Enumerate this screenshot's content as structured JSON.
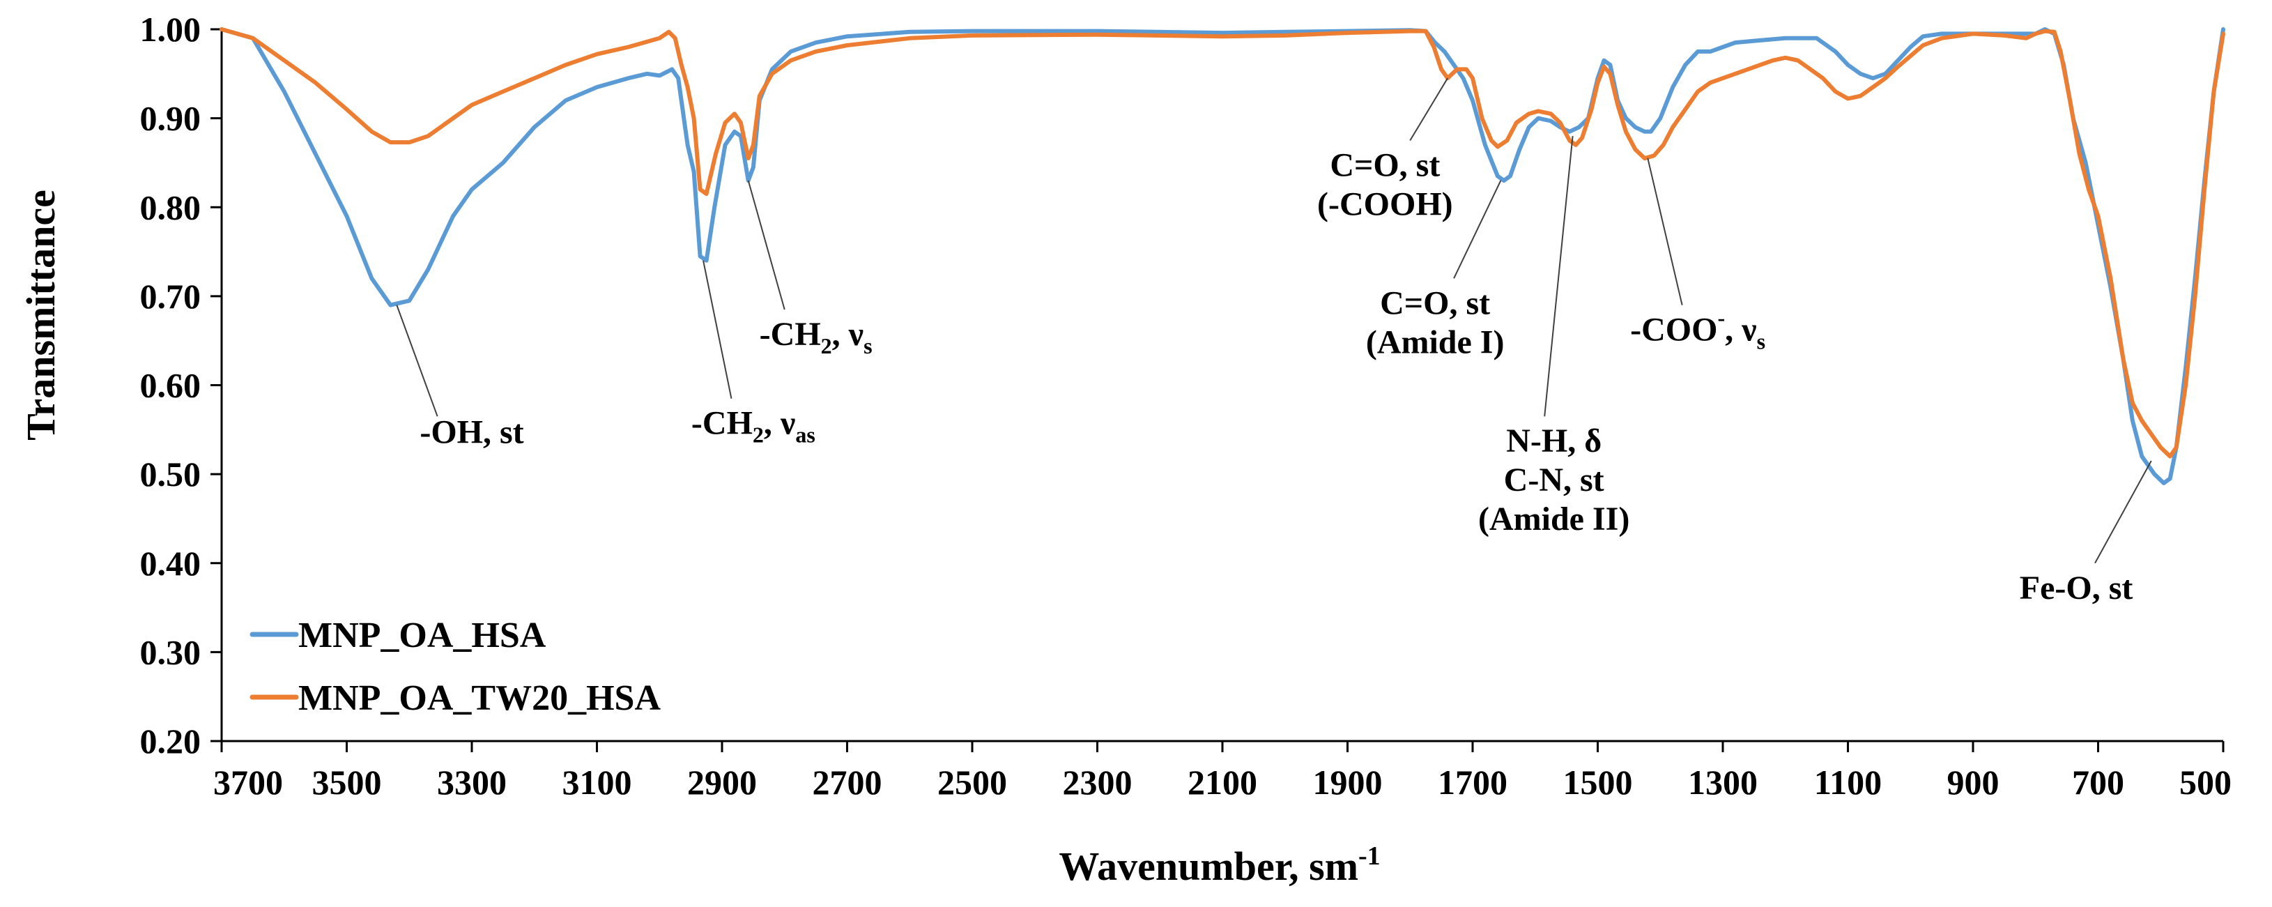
{
  "chart_data": {
    "type": "line",
    "xlabel_main": "Wavenumber, sm",
    "xlabel_sup": "-1",
    "ylabel": "Transmittance",
    "xlim": [
      3700,
      500
    ],
    "ylim": [
      0.2,
      1.0
    ],
    "x_ticks": [
      3700,
      3500,
      3300,
      3100,
      2900,
      2700,
      2500,
      2300,
      2100,
      1900,
      1700,
      1500,
      1300,
      1100,
      900,
      700,
      500
    ],
    "y_ticks": [
      "0.20",
      "0.30",
      "0.40",
      "0.50",
      "0.60",
      "0.70",
      "0.80",
      "0.90",
      "1.00"
    ],
    "legend_position": "bottom-left",
    "series": [
      {
        "name": "MNP_OA_HSA",
        "color": "#5b9bd5",
        "points": [
          [
            3700,
            1.0
          ],
          [
            3650,
            0.99
          ],
          [
            3600,
            0.93
          ],
          [
            3550,
            0.86
          ],
          [
            3500,
            0.79
          ],
          [
            3460,
            0.72
          ],
          [
            3430,
            0.69
          ],
          [
            3400,
            0.695
          ],
          [
            3370,
            0.73
          ],
          [
            3330,
            0.79
          ],
          [
            3300,
            0.82
          ],
          [
            3250,
            0.85
          ],
          [
            3200,
            0.89
          ],
          [
            3150,
            0.92
          ],
          [
            3100,
            0.935
          ],
          [
            3050,
            0.945
          ],
          [
            3020,
            0.95
          ],
          [
            3000,
            0.948
          ],
          [
            2980,
            0.955
          ],
          [
            2970,
            0.945
          ],
          [
            2955,
            0.87
          ],
          [
            2945,
            0.84
          ],
          [
            2935,
            0.745
          ],
          [
            2925,
            0.74
          ],
          [
            2912,
            0.8
          ],
          [
            2895,
            0.87
          ],
          [
            2880,
            0.885
          ],
          [
            2870,
            0.88
          ],
          [
            2858,
            0.83
          ],
          [
            2850,
            0.845
          ],
          [
            2840,
            0.92
          ],
          [
            2820,
            0.955
          ],
          [
            2790,
            0.975
          ],
          [
            2750,
            0.985
          ],
          [
            2700,
            0.992
          ],
          [
            2600,
            0.997
          ],
          [
            2500,
            0.998
          ],
          [
            2300,
            0.998
          ],
          [
            2100,
            0.996
          ],
          [
            2000,
            0.997
          ],
          [
            1900,
            0.998
          ],
          [
            1800,
            0.999
          ],
          [
            1775,
            0.998
          ],
          [
            1760,
            0.985
          ],
          [
            1745,
            0.975
          ],
          [
            1730,
            0.96
          ],
          [
            1715,
            0.945
          ],
          [
            1700,
            0.92
          ],
          [
            1680,
            0.87
          ],
          [
            1660,
            0.835
          ],
          [
            1650,
            0.83
          ],
          [
            1640,
            0.835
          ],
          [
            1625,
            0.865
          ],
          [
            1610,
            0.89
          ],
          [
            1595,
            0.9
          ],
          [
            1575,
            0.897
          ],
          [
            1560,
            0.89
          ],
          [
            1545,
            0.885
          ],
          [
            1530,
            0.89
          ],
          [
            1515,
            0.9
          ],
          [
            1500,
            0.945
          ],
          [
            1490,
            0.965
          ],
          [
            1480,
            0.96
          ],
          [
            1468,
            0.92
          ],
          [
            1455,
            0.9
          ],
          [
            1440,
            0.89
          ],
          [
            1425,
            0.885
          ],
          [
            1415,
            0.885
          ],
          [
            1400,
            0.9
          ],
          [
            1380,
            0.935
          ],
          [
            1360,
            0.96
          ],
          [
            1340,
            0.975
          ],
          [
            1320,
            0.975
          ],
          [
            1300,
            0.98
          ],
          [
            1280,
            0.985
          ],
          [
            1250,
            0.987
          ],
          [
            1200,
            0.99
          ],
          [
            1150,
            0.99
          ],
          [
            1120,
            0.975
          ],
          [
            1100,
            0.96
          ],
          [
            1080,
            0.95
          ],
          [
            1060,
            0.945
          ],
          [
            1040,
            0.95
          ],
          [
            1020,
            0.965
          ],
          [
            1000,
            0.98
          ],
          [
            980,
            0.992
          ],
          [
            950,
            0.995
          ],
          [
            900,
            0.995
          ],
          [
            850,
            0.995
          ],
          [
            800,
            0.995
          ],
          [
            785,
            1.0
          ],
          [
            770,
            0.995
          ],
          [
            755,
            0.96
          ],
          [
            740,
            0.9
          ],
          [
            720,
            0.85
          ],
          [
            700,
            0.78
          ],
          [
            680,
            0.71
          ],
          [
            660,
            0.63
          ],
          [
            645,
            0.56
          ],
          [
            630,
            0.52
          ],
          [
            610,
            0.5
          ],
          [
            595,
            0.49
          ],
          [
            585,
            0.495
          ],
          [
            575,
            0.53
          ],
          [
            560,
            0.62
          ],
          [
            545,
            0.72
          ],
          [
            530,
            0.83
          ],
          [
            515,
            0.93
          ],
          [
            500,
            1.0
          ]
        ]
      },
      {
        "name": "MNP_OA_TW20_HSA",
        "color": "#ed7d31",
        "points": [
          [
            3700,
            1.0
          ],
          [
            3650,
            0.99
          ],
          [
            3600,
            0.965
          ],
          [
            3550,
            0.94
          ],
          [
            3500,
            0.91
          ],
          [
            3460,
            0.885
          ],
          [
            3430,
            0.873
          ],
          [
            3400,
            0.873
          ],
          [
            3370,
            0.88
          ],
          [
            3340,
            0.895
          ],
          [
            3300,
            0.915
          ],
          [
            3250,
            0.93
          ],
          [
            3200,
            0.945
          ],
          [
            3150,
            0.96
          ],
          [
            3100,
            0.972
          ],
          [
            3050,
            0.98
          ],
          [
            3000,
            0.99
          ],
          [
            2985,
            0.997
          ],
          [
            2975,
            0.99
          ],
          [
            2965,
            0.96
          ],
          [
            2955,
            0.935
          ],
          [
            2945,
            0.9
          ],
          [
            2935,
            0.82
          ],
          [
            2925,
            0.815
          ],
          [
            2910,
            0.86
          ],
          [
            2895,
            0.895
          ],
          [
            2880,
            0.905
          ],
          [
            2870,
            0.895
          ],
          [
            2858,
            0.855
          ],
          [
            2850,
            0.87
          ],
          [
            2840,
            0.925
          ],
          [
            2820,
            0.95
          ],
          [
            2790,
            0.965
          ],
          [
            2750,
            0.975
          ],
          [
            2700,
            0.982
          ],
          [
            2600,
            0.99
          ],
          [
            2500,
            0.993
          ],
          [
            2300,
            0.994
          ],
          [
            2100,
            0.992
          ],
          [
            2000,
            0.993
          ],
          [
            1900,
            0.996
          ],
          [
            1800,
            0.998
          ],
          [
            1775,
            0.998
          ],
          [
            1762,
            0.98
          ],
          [
            1750,
            0.955
          ],
          [
            1740,
            0.945
          ],
          [
            1725,
            0.955
          ],
          [
            1710,
            0.955
          ],
          [
            1700,
            0.945
          ],
          [
            1685,
            0.9
          ],
          [
            1670,
            0.875
          ],
          [
            1660,
            0.868
          ],
          [
            1645,
            0.875
          ],
          [
            1630,
            0.895
          ],
          [
            1610,
            0.905
          ],
          [
            1595,
            0.908
          ],
          [
            1575,
            0.905
          ],
          [
            1560,
            0.895
          ],
          [
            1545,
            0.875
          ],
          [
            1535,
            0.87
          ],
          [
            1525,
            0.878
          ],
          [
            1510,
            0.91
          ],
          [
            1500,
            0.94
          ],
          [
            1490,
            0.958
          ],
          [
            1480,
            0.95
          ],
          [
            1468,
            0.915
          ],
          [
            1455,
            0.885
          ],
          [
            1440,
            0.865
          ],
          [
            1425,
            0.855
          ],
          [
            1410,
            0.858
          ],
          [
            1395,
            0.87
          ],
          [
            1380,
            0.89
          ],
          [
            1360,
            0.91
          ],
          [
            1340,
            0.93
          ],
          [
            1320,
            0.94
          ],
          [
            1300,
            0.945
          ],
          [
            1280,
            0.95
          ],
          [
            1260,
            0.955
          ],
          [
            1240,
            0.96
          ],
          [
            1220,
            0.965
          ],
          [
            1200,
            0.968
          ],
          [
            1180,
            0.965
          ],
          [
            1160,
            0.955
          ],
          [
            1140,
            0.945
          ],
          [
            1120,
            0.93
          ],
          [
            1100,
            0.922
          ],
          [
            1080,
            0.925
          ],
          [
            1060,
            0.935
          ],
          [
            1040,
            0.945
          ],
          [
            1020,
            0.958
          ],
          [
            1000,
            0.97
          ],
          [
            980,
            0.982
          ],
          [
            950,
            0.99
          ],
          [
            900,
            0.995
          ],
          [
            850,
            0.993
          ],
          [
            815,
            0.99
          ],
          [
            800,
            0.995
          ],
          [
            785,
            0.998
          ],
          [
            770,
            0.997
          ],
          [
            760,
            0.975
          ],
          [
            745,
            0.92
          ],
          [
            730,
            0.86
          ],
          [
            715,
            0.82
          ],
          [
            700,
            0.79
          ],
          [
            680,
            0.72
          ],
          [
            660,
            0.63
          ],
          [
            645,
            0.58
          ],
          [
            630,
            0.56
          ],
          [
            615,
            0.545
          ],
          [
            600,
            0.53
          ],
          [
            585,
            0.52
          ],
          [
            575,
            0.53
          ],
          [
            560,
            0.6
          ],
          [
            545,
            0.7
          ],
          [
            530,
            0.82
          ],
          [
            515,
            0.93
          ],
          [
            500,
            0.995
          ]
        ]
      }
    ],
    "annotations": [
      {
        "lines": [
          "-OH, st"
        ],
        "anchor": [
          3420,
          0.69
        ],
        "label_pos": [
          3300,
          0.535
        ],
        "line_end": [
          3355,
          0.565
        ]
      },
      {
        "lines": [
          {
            "pre": "-CH",
            "sub1": "2",
            "mid": ", ν",
            "sub2": "as"
          }
        ],
        "anchor": [
          2930,
          0.74
        ],
        "label_pos": [
          2850,
          0.545
        ],
        "line_end": [
          2885,
          0.585
        ]
      },
      {
        "lines": [
          {
            "pre": "-CH",
            "sub1": "2",
            "mid": ", ν",
            "sub2": "s"
          }
        ],
        "anchor": [
          2858,
          0.83
        ],
        "label_pos": [
          2750,
          0.645
        ],
        "line_end": [
          2800,
          0.685
        ]
      },
      {
        "lines": [
          "C=O, st",
          "(-COOH)"
        ],
        "anchor": [
          1740,
          0.945
        ],
        "label_pos": [
          1840,
          0.835
        ],
        "line_end": [
          1800,
          0.875
        ]
      },
      {
        "lines": [
          "C=O, st",
          "(Amide I)"
        ],
        "anchor": [
          1655,
          0.83
        ],
        "label_pos": [
          1760,
          0.68
        ],
        "line_end": [
          1730,
          0.72
        ]
      },
      {
        "lines": [
          "N-H, δ",
          "C-N, st",
          "(Amide II)"
        ],
        "anchor": [
          1540,
          0.88
        ],
        "label_pos": [
          1570,
          0.525
        ],
        "line_end": [
          1585,
          0.565
        ]
      },
      {
        "lines": [
          {
            "pre": "-COO",
            "sup1": "-",
            "mid": ", ν",
            "sub2": "s"
          }
        ],
        "anchor": [
          1420,
          0.855
        ],
        "label_pos": [
          1340,
          0.65
        ],
        "line_end": [
          1365,
          0.69
        ]
      },
      {
        "lines": [
          "Fe-O, st"
        ],
        "anchor": [
          615,
          0.515
        ],
        "label_pos": [
          735,
          0.36
        ],
        "line_end": [
          705,
          0.4
        ]
      }
    ]
  }
}
